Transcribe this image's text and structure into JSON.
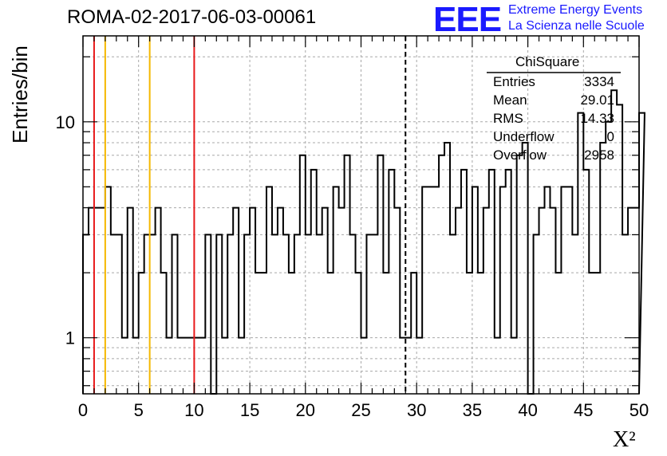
{
  "title": "ROMA-02-2017-06-03-00061",
  "logo": {
    "mark": "EEE",
    "line1": "Extreme Energy Events",
    "line2": "La Scienza nelle Scuole",
    "color": "#1a1aff"
  },
  "stats": {
    "title": "ChiSquare",
    "rows": [
      {
        "key": "Entries",
        "value": "3334"
      },
      {
        "key": "Mean",
        "value": "29.01"
      },
      {
        "key": "RMS",
        "value": "14.33"
      },
      {
        "key": "Underflow",
        "value": "0"
      },
      {
        "key": "Overflow",
        "value": "2958"
      }
    ]
  },
  "chart_data": {
    "type": "histogram",
    "title": "ROMA-02-2017-06-03-00061",
    "xlabel": "X²",
    "ylabel": "Entries/bin",
    "xlim": [
      0,
      50
    ],
    "ylim": [
      0.55,
      25
    ],
    "yscale": "log",
    "grid": true,
    "bin_width": 0.5,
    "x_ticks": [
      0,
      5,
      10,
      15,
      20,
      25,
      30,
      35,
      40,
      45,
      50
    ],
    "y_ticks": [
      1,
      10
    ],
    "values": [
      3,
      4,
      4,
      4,
      5,
      3,
      3,
      1,
      4,
      1,
      2,
      3,
      3,
      4,
      2,
      1,
      3,
      1,
      1,
      1,
      1,
      1,
      3,
      0,
      3,
      1,
      3,
      4,
      1,
      3,
      4,
      2,
      2,
      5,
      3,
      4,
      3,
      2,
      3,
      7,
      3,
      6,
      3,
      4,
      2,
      5,
      4,
      7,
      3,
      2,
      1,
      3,
      3,
      7,
      2,
      6,
      4,
      1,
      1,
      2,
      1,
      5,
      5,
      5,
      7,
      8,
      3,
      4,
      6,
      2,
      5,
      2,
      4,
      6,
      1,
      5,
      6,
      1,
      7,
      8,
      0,
      3,
      4,
      5,
      4,
      2,
      5,
      5,
      3,
      11,
      6,
      2,
      2,
      8,
      10,
      14,
      12,
      3,
      4,
      4,
      11
    ],
    "value_note": "counts per 0.5-wide bin read from the step histogram; 0 means below the lower axis limit",
    "vertical_lines": [
      {
        "x": 1,
        "color": "#e8191a",
        "style": "solid"
      },
      {
        "x": 2,
        "color": "#f5b800",
        "style": "solid"
      },
      {
        "x": 6,
        "color": "#f5b800",
        "style": "solid"
      },
      {
        "x": 10,
        "color": "#e8191a",
        "style": "solid"
      },
      {
        "x": 29,
        "color": "#000000",
        "style": "dashed"
      }
    ]
  }
}
